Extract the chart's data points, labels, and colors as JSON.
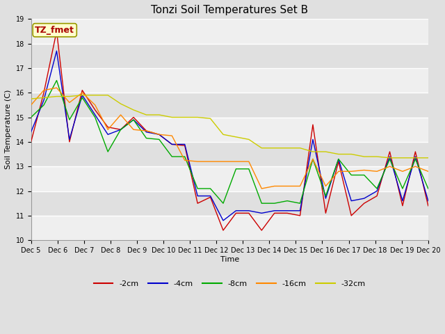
{
  "title": "Tonzi Soil Temperatures Set B",
  "xlabel": "Time",
  "ylabel": "Soil Temperature (C)",
  "ylim": [
    10.0,
    19.0
  ],
  "yticks": [
    10.0,
    11.0,
    12.0,
    13.0,
    14.0,
    15.0,
    16.0,
    17.0,
    18.0,
    19.0
  ],
  "xtick_labels": [
    "Dec 5",
    "Dec 6",
    "Dec 7",
    "Dec 8",
    "Dec 9",
    "Dec 10",
    "Dec 11",
    "Dec 12",
    "Dec 13",
    "Dec 14",
    "Dec 15",
    "Dec 16",
    "Dec 17",
    "Dec 18",
    "Dec 19",
    "Dec 20"
  ],
  "series_colors": {
    "-2cm": "#cc0000",
    "-4cm": "#0000cc",
    "-8cm": "#00aa00",
    "-16cm": "#ff8800",
    "-32cm": "#cccc00"
  },
  "series_labels": [
    "-2cm",
    "-4cm",
    "-8cm",
    "-16cm",
    "-32cm"
  ],
  "background_color": "#e0e0e0",
  "plot_bg_color": "#e0e0e0",
  "grid_color": "#ffffff",
  "annotation_text": "TZ_fmet",
  "annotation_color": "#aa0000",
  "annotation_bg": "#ffffcc",
  "title_fontsize": 11,
  "axis_label_fontsize": 8,
  "tick_fontsize": 7,
  "data": {
    "-2cm": [
      14.0,
      16.0,
      18.5,
      14.0,
      16.1,
      15.3,
      14.6,
      14.5,
      15.0,
      14.45,
      14.3,
      13.9,
      13.85,
      11.5,
      11.75,
      10.4,
      11.1,
      11.1,
      10.4,
      11.1,
      11.1,
      11.0,
      14.7,
      11.1,
      13.2,
      11.0,
      11.5,
      11.8,
      13.6,
      11.4,
      13.6,
      11.4
    ],
    "-4cm": [
      14.4,
      15.7,
      17.7,
      14.1,
      15.9,
      15.1,
      14.3,
      14.5,
      14.9,
      14.4,
      14.3,
      13.9,
      13.9,
      11.8,
      11.8,
      10.8,
      11.2,
      11.2,
      11.1,
      11.2,
      11.2,
      11.2,
      14.1,
      11.7,
      13.3,
      11.6,
      11.7,
      12.0,
      13.4,
      11.6,
      13.4,
      11.6
    ],
    "-8cm": [
      15.0,
      15.5,
      16.5,
      14.9,
      15.8,
      15.0,
      13.6,
      14.5,
      14.9,
      14.15,
      14.1,
      13.4,
      13.4,
      12.1,
      12.1,
      11.5,
      12.9,
      12.9,
      11.5,
      11.5,
      11.6,
      11.5,
      13.3,
      11.8,
      13.3,
      12.65,
      12.65,
      12.1,
      13.3,
      12.1,
      13.3,
      12.1
    ],
    "-16cm": [
      15.5,
      16.1,
      16.2,
      15.6,
      16.0,
      15.5,
      14.5,
      15.1,
      14.5,
      14.45,
      14.3,
      14.25,
      13.25,
      13.2,
      13.2,
      13.2,
      13.2,
      13.2,
      12.1,
      12.2,
      12.2,
      12.2,
      13.3,
      12.2,
      12.8,
      12.8,
      12.85,
      12.8,
      13.0,
      12.8,
      13.0,
      12.8
    ],
    "-32cm": [
      15.75,
      15.8,
      15.85,
      15.85,
      15.9,
      15.9,
      15.9,
      15.55,
      15.3,
      15.1,
      15.1,
      15.0,
      15.0,
      15.0,
      14.95,
      14.3,
      14.2,
      14.1,
      13.75,
      13.75,
      13.75,
      13.75,
      13.6,
      13.6,
      13.5,
      13.5,
      13.4,
      13.4,
      13.35,
      13.35,
      13.35,
      13.35
    ]
  }
}
